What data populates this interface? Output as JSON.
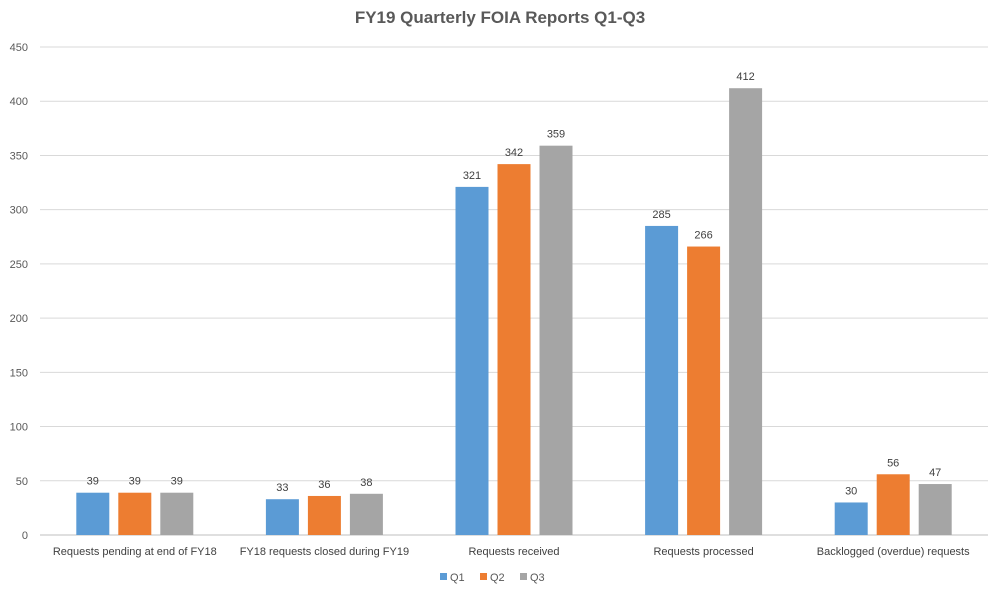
{
  "chart_data": {
    "type": "bar",
    "title": "FY19 Quarterly FOIA Reports Q1-Q3",
    "xlabel": "",
    "ylabel": "",
    "ylim": [
      0,
      450
    ],
    "yticks": [
      0,
      50,
      100,
      150,
      200,
      250,
      300,
      350,
      400,
      450
    ],
    "grid": true,
    "legend_position": "bottom",
    "categories": [
      "Requests pending at end of FY18",
      "FY18 requests closed during FY19",
      "Requests received",
      "Requests processed",
      "Backlogged (overdue) requests"
    ],
    "series": [
      {
        "name": "Q1",
        "color": "#5b9bd5",
        "values": [
          39,
          33,
          321,
          285,
          30
        ]
      },
      {
        "name": "Q2",
        "color": "#ed7d31",
        "values": [
          39,
          36,
          342,
          266,
          56
        ]
      },
      {
        "name": "Q3",
        "color": "#a5a5a5",
        "values": [
          39,
          38,
          359,
          412,
          47
        ]
      }
    ]
  }
}
